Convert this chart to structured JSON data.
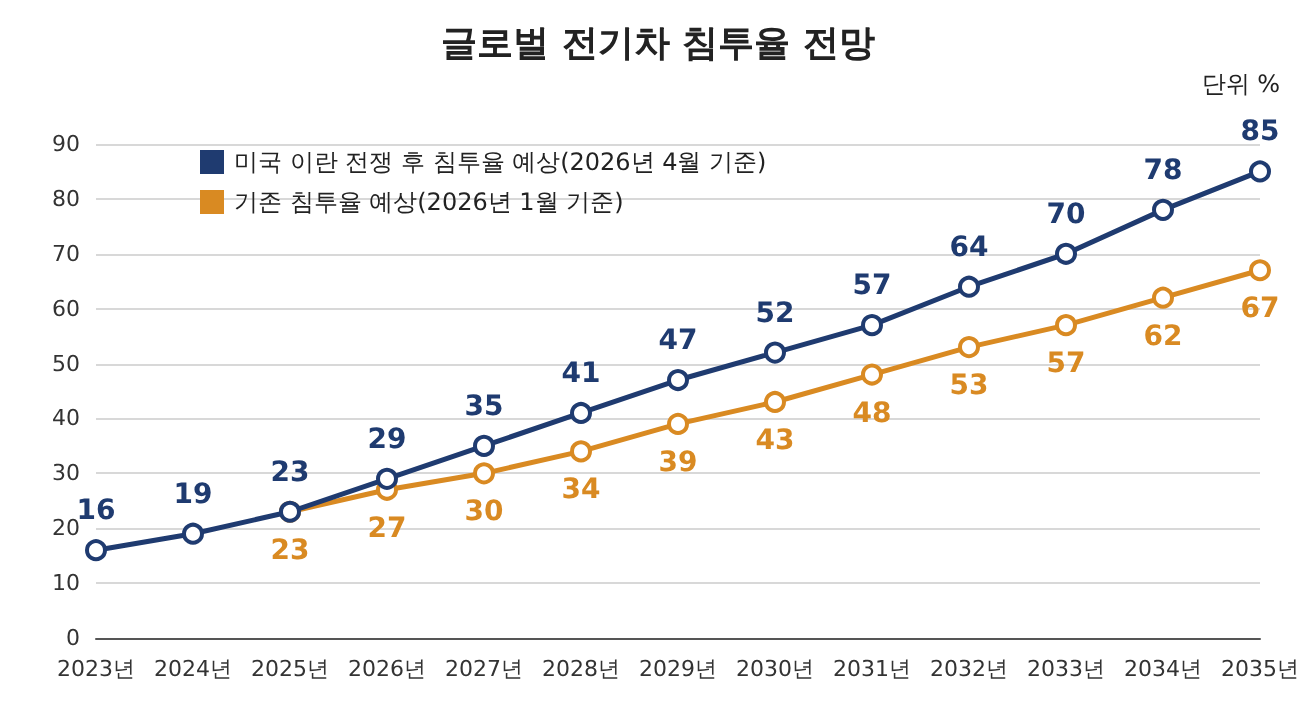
{
  "chart_data": {
    "type": "line",
    "title": "글로벌 전기차 침투율 전망",
    "categories": [
      "2023년",
      "2024년",
      "2025년",
      "2026년",
      "2027년",
      "2028년",
      "2029년",
      "2030년",
      "2031년",
      "2032년",
      "2033년",
      "2034년",
      "2035년"
    ],
    "series": [
      {
        "name": "미국 이란 전쟁 후 침투율 예상(2026년 4월 기준)",
        "color": "#1f3b70",
        "values": [
          16,
          19,
          23,
          29,
          35,
          41,
          47,
          52,
          57,
          64,
          70,
          78,
          85
        ]
      },
      {
        "name": "기존 침투율 예상(2026년 1월 기준)",
        "color": "#d98a22",
        "values": [
          null,
          null,
          23,
          27,
          30,
          34,
          39,
          43,
          48,
          53,
          57,
          62,
          67
        ]
      }
    ],
    "ylim": [
      0,
      90
    ],
    "yticks": [
      0,
      10,
      20,
      30,
      40,
      50,
      60,
      70,
      80,
      90
    ],
    "annotations": [
      "단위 %"
    ],
    "grid": "y",
    "legend": "top left",
    "marker": "circle",
    "line_style": "solid",
    "data_labels": true
  }
}
